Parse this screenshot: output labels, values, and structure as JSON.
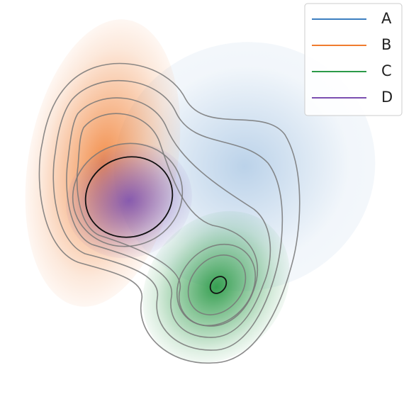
{
  "chart_data": {
    "type": "kde",
    "series": [
      {
        "name": "A",
        "color": "#3d7fc1"
      },
      {
        "name": "B",
        "color": "#f07c2e"
      },
      {
        "name": "C",
        "color": "#2c9a48"
      },
      {
        "name": "D",
        "color": "#7b4fb0"
      }
    ],
    "legend": "upper right"
  }
}
